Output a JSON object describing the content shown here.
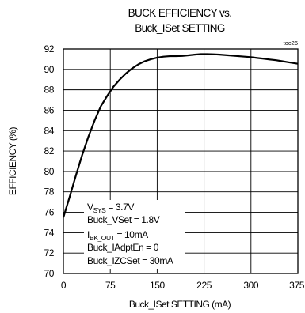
{
  "chart_data": {
    "type": "line",
    "title_lines": [
      "BUCK EFFICIENCY vs.",
      "Buck_ISet SETTING"
    ],
    "chart_tag": "toc26",
    "xlabel": "Buck_ISet SETTING (mA)",
    "ylabel": "EFFICIENCY (%)",
    "xlim": [
      0,
      375
    ],
    "ylim": [
      70,
      92
    ],
    "x_ticks": [
      0,
      75,
      150,
      225,
      300,
      375
    ],
    "y_ticks": [
      70,
      72,
      74,
      76,
      78,
      80,
      82,
      84,
      86,
      88,
      90,
      92
    ],
    "grid": true,
    "series": [
      {
        "x": [
          0,
          10,
          20,
          30,
          40,
          50,
          60,
          70,
          80,
          90,
          100,
          110,
          120,
          130,
          140,
          150,
          160,
          170,
          180,
          190,
          200,
          210,
          220,
          230,
          240,
          250,
          260,
          270,
          280,
          290,
          300,
          310,
          320,
          330,
          340,
          350,
          360,
          370,
          375
        ],
        "y": [
          75.5,
          77.5,
          79.6,
          81.6,
          83.4,
          85.0,
          86.4,
          87.4,
          88.3,
          89.0,
          89.6,
          90.1,
          90.5,
          90.8,
          91.0,
          91.15,
          91.25,
          91.3,
          91.3,
          91.32,
          91.38,
          91.45,
          91.5,
          91.5,
          91.48,
          91.45,
          91.4,
          91.35,
          91.3,
          91.25,
          91.2,
          91.12,
          91.05,
          90.97,
          90.9,
          90.8,
          90.7,
          90.6,
          90.55
        ]
      }
    ],
    "annotation": {
      "vsys": {
        "main": "V",
        "sub": "SYS",
        "rest": " = 3.7V"
      },
      "buck_vset": "Buck_VSet = 1.8V",
      "ibk": {
        "main": "I",
        "sub": "BK_OUT",
        "rest": " = 10mA"
      },
      "buck_iadpten": "Buck_IAdptEn = 0",
      "buck_izcset": "Buck_IZCSet = 30mA"
    }
  }
}
